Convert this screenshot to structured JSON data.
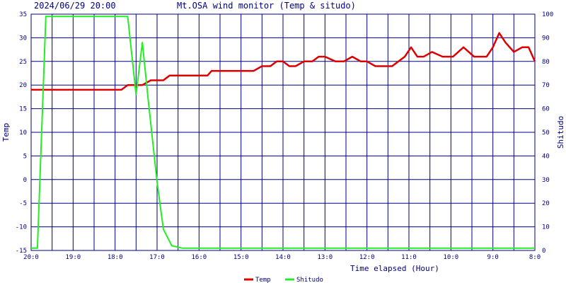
{
  "header": {
    "datetime": "2024/06/29 20:00",
    "title": "Mt.OSA wind monitor (Temp & situdo)"
  },
  "chart_data": {
    "type": "line",
    "title": "Mt.OSA wind monitor (Temp & situdo)",
    "xlabel": "Time elapsed (Hour)",
    "ylabel_left": "Temp",
    "ylabel_right": "Shitudo",
    "x_range": [
      0,
      12
    ],
    "x_direction": "hours before 20:00, increasing to the right",
    "x_ticks": [
      {
        "value": 0,
        "label": "20:0"
      },
      {
        "value": 1,
        "label": "19:0"
      },
      {
        "value": 2,
        "label": "18:0"
      },
      {
        "value": 3,
        "label": "17:0"
      },
      {
        "value": 4,
        "label": "16:0"
      },
      {
        "value": 5,
        "label": "15:0"
      },
      {
        "value": 6,
        "label": "14:0"
      },
      {
        "value": 7,
        "label": "13:0"
      },
      {
        "value": 8,
        "label": "12:0"
      },
      {
        "value": 9,
        "label": "11:0"
      },
      {
        "value": 10,
        "label": "10:0"
      },
      {
        "value": 11,
        "label": "9:0"
      },
      {
        "value": 12,
        "label": "8:0"
      }
    ],
    "y_left": {
      "range": [
        -15,
        35
      ],
      "ticks": [
        35,
        30,
        25,
        20,
        15,
        10,
        5,
        0,
        -5,
        -10,
        -15
      ]
    },
    "y_right": {
      "range": [
        0,
        100
      ],
      "ticks": [
        100,
        90,
        80,
        70,
        60,
        50,
        40,
        30,
        20,
        10,
        0
      ]
    },
    "grid": true,
    "legend_position": "bottom",
    "series": [
      {
        "name": "Temp",
        "axis": "left",
        "color": "#dd0000",
        "x": [
          0,
          0.5,
          1,
          1.5,
          2,
          2.15,
          2.3,
          2.5,
          2.65,
          2.85,
          3.15,
          3.3,
          3.5,
          3.8,
          4.2,
          4.3,
          4.5,
          4.8,
          5.1,
          5.3,
          5.5,
          5.7,
          5.85,
          6.0,
          6.15,
          6.3,
          6.5,
          6.7,
          6.85,
          7.0,
          7.25,
          7.45,
          7.65,
          7.85,
          8.0,
          8.2,
          8.4,
          8.6,
          8.75,
          8.9,
          9.05,
          9.2,
          9.35,
          9.55,
          9.8,
          9.9,
          10.05,
          10.3,
          10.55,
          10.75,
          10.85,
          11.0,
          11.15,
          11.3,
          11.5,
          11.7,
          11.85,
          12.0
        ],
        "values": [
          19,
          19,
          19,
          19,
          19,
          19,
          20,
          20,
          20,
          21,
          21,
          22,
          22,
          22,
          22,
          23,
          23,
          23,
          23,
          23,
          24,
          24,
          25,
          25,
          24,
          24,
          25,
          25,
          26,
          26,
          25,
          25,
          26,
          25,
          25,
          24,
          24,
          24,
          25,
          26,
          28,
          26,
          26,
          27,
          26,
          26,
          26,
          28,
          26,
          26,
          26,
          28,
          31,
          29,
          27,
          28,
          28,
          25
        ]
      },
      {
        "name": "Shitudo",
        "axis": "right",
        "color": "#22ee22",
        "x": [
          0,
          0.15,
          0.35,
          2.3,
          2.5,
          2.65,
          2.8,
          3.0,
          3.15,
          3.35,
          3.6,
          12.0
        ],
        "values": [
          1,
          1,
          99,
          99,
          66,
          88,
          62,
          29,
          9,
          2,
          1,
          1
        ]
      }
    ]
  }
}
